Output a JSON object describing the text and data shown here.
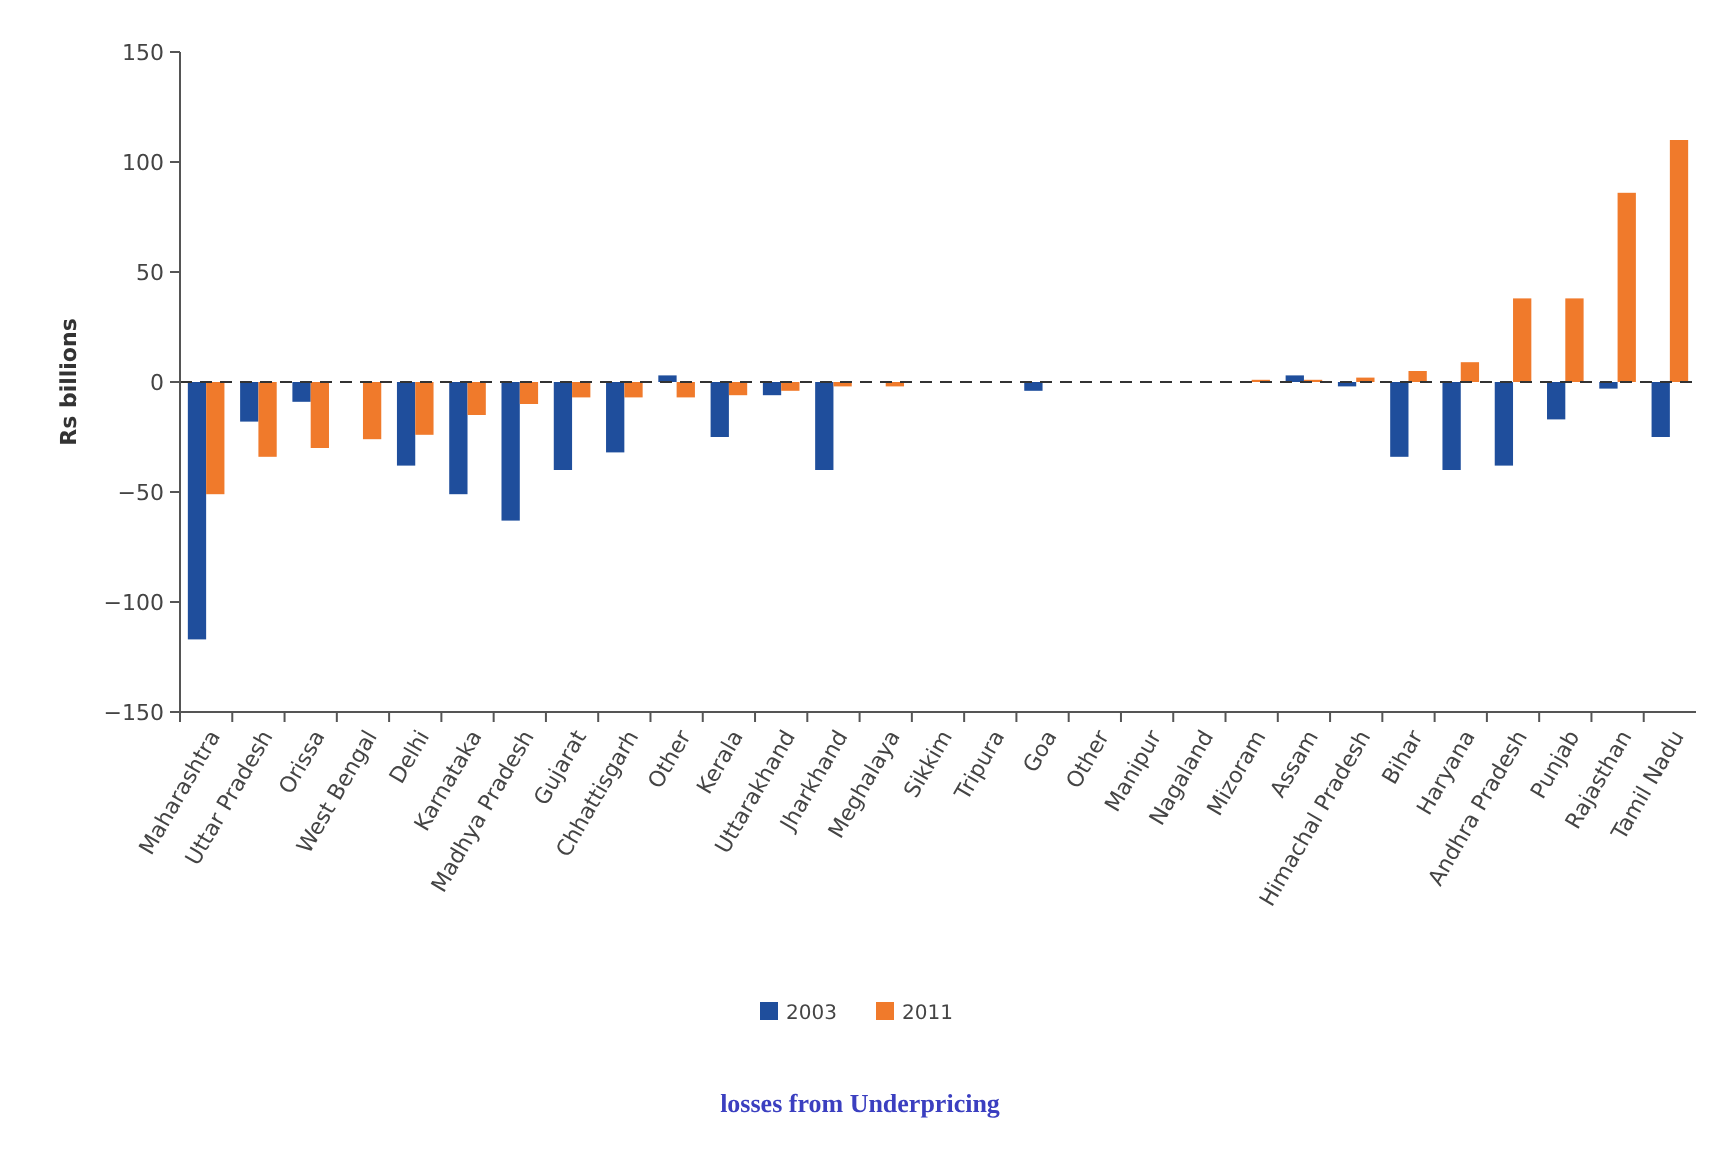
{
  "chart_data": {
    "type": "bar",
    "title": "losses from Underpricing",
    "ylabel": "Rs billions",
    "categories": [
      "Maharashtra",
      "Uttar Pradesh",
      "Orissa",
      "West Bengal",
      "Delhi",
      "Karnataka",
      "Madhya Pradesh",
      "Gujarat",
      "Chhattisgarh",
      "Other",
      "Kerala",
      "Uttarakhand",
      "Jharkhand",
      "Meghalaya",
      "Sikkim",
      "Tripura",
      "Goa",
      "Other",
      "Manipur",
      "Nagaland",
      "Mizoram",
      "Assam",
      "Himachal Pradesh",
      "Bihar",
      "Haryana",
      "Andhra Pradesh",
      "Punjab",
      "Rajasthan",
      "Tamil Nadu"
    ],
    "series": [
      {
        "name": "2003",
        "color": "#1f4e9c",
        "values": [
          -117,
          -18,
          -9,
          0,
          -38,
          -51,
          -63,
          -40,
          -32,
          3,
          -25,
          -6,
          -40,
          0,
          0,
          0,
          -4,
          0,
          0,
          0,
          0,
          3,
          -2,
          -34,
          -40,
          -38,
          -17,
          -3,
          -25
        ]
      },
      {
        "name": "2011",
        "color": "#f07a2b",
        "values": [
          -51,
          -34,
          -30,
          -26,
          -24,
          -15,
          -10,
          -7,
          -7,
          -7,
          -6,
          -4,
          -2,
          -2,
          0,
          0,
          0,
          0,
          0,
          0,
          1,
          1,
          2,
          5,
          9,
          38,
          38,
          86,
          110
        ]
      }
    ],
    "ylim": [
      -150,
      150
    ],
    "yticks": [
      -150,
      -100,
      -50,
      0,
      50,
      100,
      150
    ],
    "ref_lines": [
      {
        "axis": "y",
        "value": 0,
        "color": "#333333",
        "line_style": "dashed"
      }
    ],
    "grid": false,
    "legend": "bottom"
  }
}
